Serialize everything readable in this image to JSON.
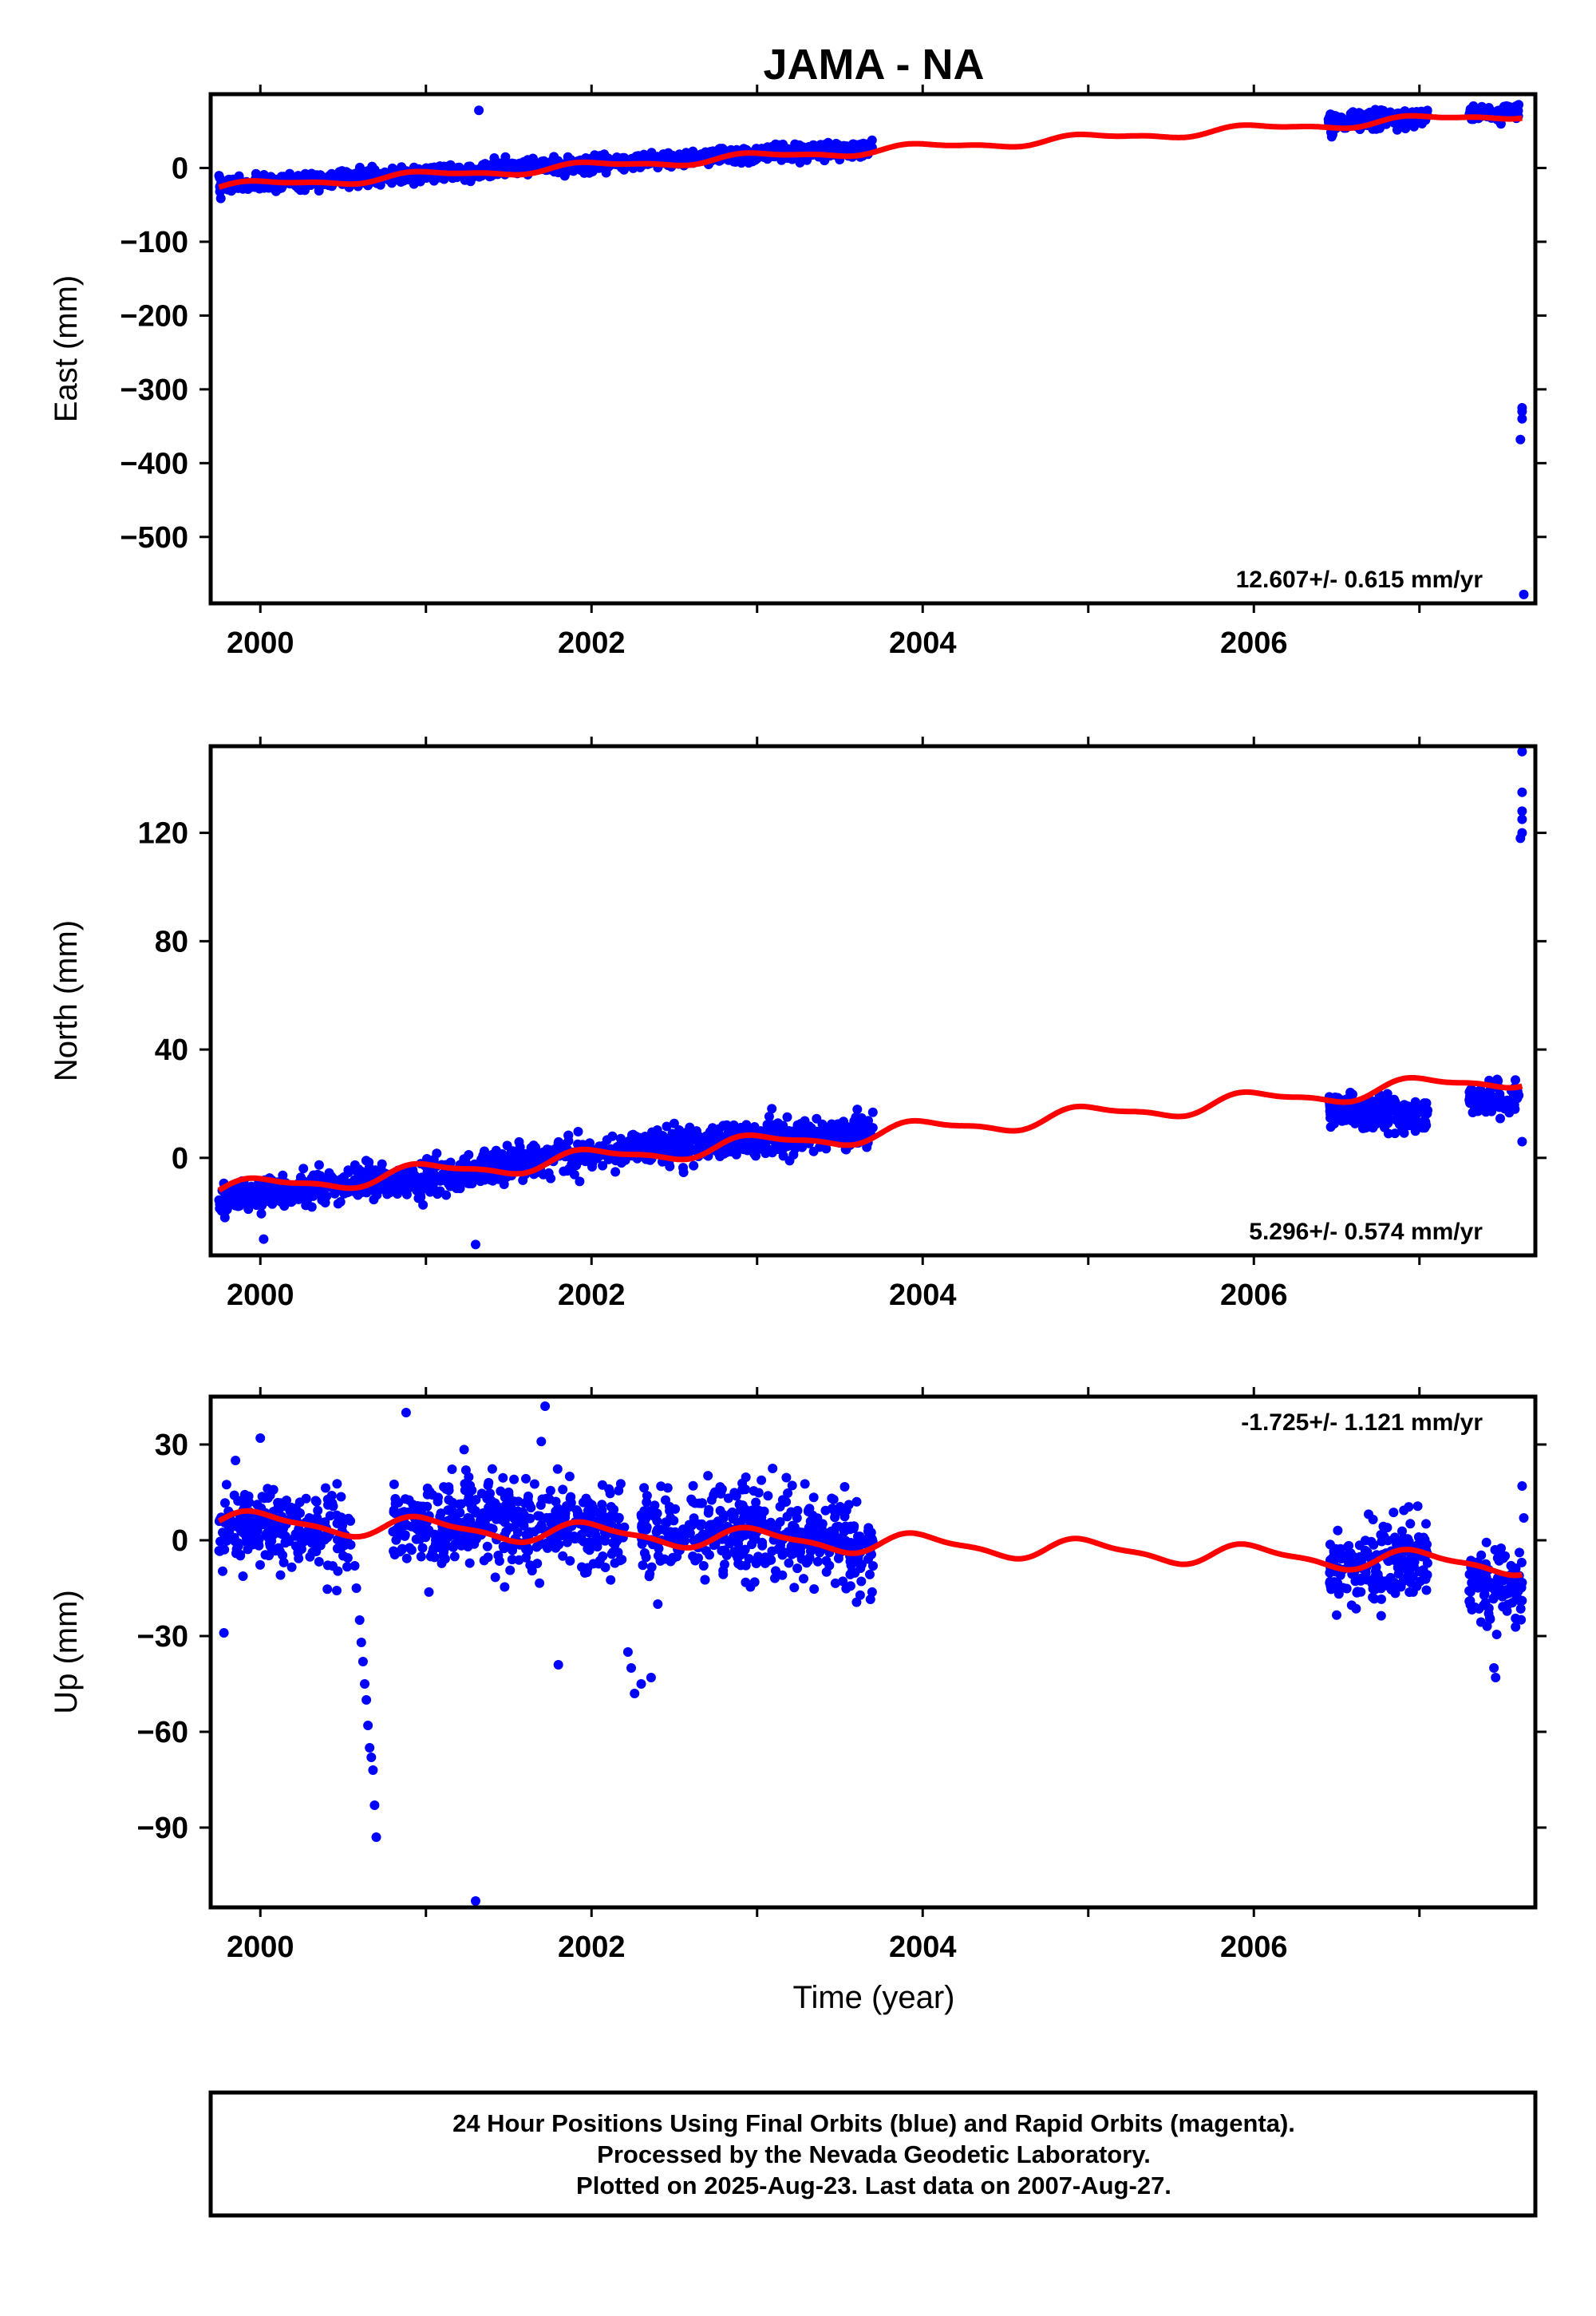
{
  "title": "JAMA - NA",
  "xlabel": "Time (year)",
  "colors": {
    "final_orbits": "#0000ff",
    "model": "#ff0000",
    "frame": "#000000"
  },
  "footer": {
    "line1": "24 Hour Positions Using Final Orbits (blue) and Rapid Orbits (magenta).",
    "line2": "Processed by the Nevada Geodetic Laboratory.",
    "line3": "Plotted on 2025-Aug-23. Last data on 2007-Aug-27."
  },
  "chart_data": [
    {
      "type": "scatter",
      "component": "east",
      "ylabel": "East (mm)",
      "rate_label": "12.607+/- 0.615 mm/yr",
      "xlim": [
        1999.7,
        2007.7
      ],
      "ylim": [
        -590,
        100
      ],
      "yticks": [
        0,
        -100,
        -200,
        -300,
        -400,
        -500
      ],
      "ytick_labels": [
        "0",
        "−100",
        "−200",
        "−300",
        "−400",
        "−500"
      ],
      "xticks": [
        2000,
        2002,
        2004,
        2006
      ],
      "xtick_labels": [
        "2000",
        "2002",
        "2004",
        "2006"
      ],
      "data_segments": [
        {
          "x0": 1999.75,
          "x1": 2000.75,
          "slope": 12.6,
          "base": -24,
          "noise": 5
        },
        {
          "x0": 2000.75,
          "x1": 2001.3,
          "slope": 12.6,
          "base": -12,
          "noise": 5
        },
        {
          "x0": 2001.32,
          "x1": 2002.2,
          "slope": 12.6,
          "base": -3,
          "noise": 5
        },
        {
          "x0": 2002.2,
          "x1": 2003.7,
          "slope": 12.6,
          "base": 8,
          "noise": 5
        },
        {
          "x0": 2006.45,
          "x1": 2007.05,
          "slope": 12.6,
          "base": 62,
          "noise": 6
        },
        {
          "x0": 2007.3,
          "x1": 2007.6,
          "slope": 12.6,
          "base": 72,
          "noise": 5
        }
      ],
      "outliers": [
        [
          2001.32,
          78
        ],
        [
          2007.62,
          -330
        ],
        [
          2007.62,
          -340
        ],
        [
          2007.61,
          -368
        ],
        [
          2007.62,
          -325
        ],
        [
          2007.63,
          -578
        ]
      ],
      "model": {
        "t0": 1999.75,
        "y0": -26,
        "slope": 12.607,
        "annual_amp": 5,
        "semiannual_amp": 2
      }
    },
    {
      "type": "scatter",
      "component": "north",
      "ylabel": "North (mm)",
      "rate_label": "5.296+/- 0.574 mm/yr",
      "xlim": [
        1999.7,
        2007.7
      ],
      "ylim": [
        -36,
        152
      ],
      "yticks": [
        0,
        40,
        80,
        120
      ],
      "ytick_labels": [
        "0",
        "40",
        "80",
        "120"
      ],
      "xticks": [
        2000,
        2002,
        2004,
        2006
      ],
      "xtick_labels": [
        "2000",
        "2002",
        "2004",
        "2006"
      ],
      "data_segments": [
        {
          "x0": 1999.75,
          "x1": 2000.75,
          "slope": 7,
          "base": -15,
          "noise": 3
        },
        {
          "x0": 2000.75,
          "x1": 2001.3,
          "slope": 7,
          "base": -10,
          "noise": 3
        },
        {
          "x0": 2001.32,
          "x1": 2002.2,
          "slope": 7,
          "base": -3,
          "noise": 3
        },
        {
          "x0": 2002.2,
          "x1": 2003.7,
          "slope": 5,
          "base": 3,
          "noise": 3
        },
        {
          "x0": 2006.45,
          "x1": 2007.05,
          "slope": -5,
          "base": 18,
          "noise": 3
        },
        {
          "x0": 2007.3,
          "x1": 2007.6,
          "slope": 5,
          "base": 21,
          "noise": 3
        }
      ],
      "outliers": [
        [
          2000.02,
          -30
        ],
        [
          2001.3,
          -32
        ],
        [
          2007.62,
          150
        ],
        [
          2007.62,
          135
        ],
        [
          2007.62,
          128
        ],
        [
          2007.62,
          125
        ],
        [
          2007.61,
          118
        ],
        [
          2007.62,
          120
        ],
        [
          2007.62,
          6
        ]
      ],
      "model": {
        "t0": 1999.75,
        "y0": -12,
        "slope": 5.296,
        "annual_amp": 3,
        "semiannual_amp": 1
      }
    },
    {
      "type": "scatter",
      "component": "up",
      "ylabel": "Up (mm)",
      "rate_label": "-1.725+/- 1.121 mm/yr",
      "xlim": [
        1999.7,
        2007.7
      ],
      "ylim": [
        -115,
        45
      ],
      "yticks": [
        30,
        0,
        -30,
        -60,
        -90
      ],
      "ytick_labels": [
        "30",
        "0",
        "−30",
        "−60",
        "−90"
      ],
      "xticks": [
        2000,
        2002,
        2004,
        2006
      ],
      "xtick_labels": [
        "2000",
        "2002",
        "2004",
        "2006"
      ],
      "data_segments": [
        {
          "x0": 1999.75,
          "x1": 2000.55,
          "slope": -1.7,
          "base": 4,
          "noise": 6
        },
        {
          "x0": 2000.8,
          "x1": 2002.2,
          "slope": -1.7,
          "base": 6,
          "noise": 7
        },
        {
          "x0": 2002.3,
          "x1": 2003.55,
          "slope": -1.7,
          "base": 3,
          "noise": 7
        },
        {
          "x0": 2003.55,
          "x1": 2003.7,
          "slope": -1.7,
          "base": -3,
          "noise": 6
        },
        {
          "x0": 2006.45,
          "x1": 2007.05,
          "slope": 6,
          "base": -9,
          "noise": 6
        },
        {
          "x0": 2007.3,
          "x1": 2007.62,
          "slope": -1.7,
          "base": -14,
          "noise": 6
        }
      ],
      "outliers": [
        [
          1999.78,
          -29
        ],
        [
          1999.85,
          25
        ],
        [
          2000.0,
          32
        ],
        [
          2000.88,
          40
        ],
        [
          2001.3,
          -113
        ],
        [
          2001.72,
          42
        ],
        [
          2001.8,
          -39
        ],
        [
          2000.57,
          -8
        ],
        [
          2000.58,
          -15
        ],
        [
          2000.6,
          -25
        ],
        [
          2000.61,
          -32
        ],
        [
          2000.62,
          -38
        ],
        [
          2000.63,
          -45
        ],
        [
          2000.64,
          -50
        ],
        [
          2000.65,
          -58
        ],
        [
          2000.66,
          -65
        ],
        [
          2000.67,
          -68
        ],
        [
          2000.68,
          -72
        ],
        [
          2000.69,
          -83
        ],
        [
          2000.7,
          -93
        ],
        [
          2002.22,
          -35
        ],
        [
          2002.24,
          -40
        ],
        [
          2002.26,
          -48
        ],
        [
          2002.3,
          -45
        ],
        [
          2002.36,
          -43
        ],
        [
          2002.4,
          -20
        ],
        [
          2007.45,
          -40
        ],
        [
          2007.46,
          -43
        ],
        [
          2007.62,
          17
        ],
        [
          2007.63,
          7
        ]
      ],
      "model": {
        "t0": 1999.75,
        "y0": 6,
        "slope": -1.725,
        "annual_amp": 3,
        "semiannual_amp": 1
      }
    }
  ]
}
